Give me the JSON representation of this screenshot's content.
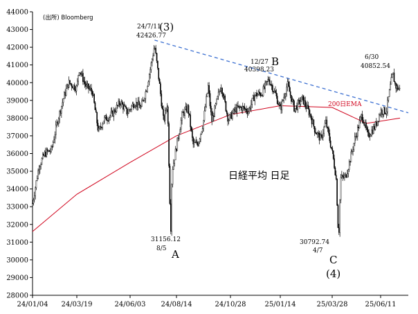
{
  "chart_data": {
    "type": "candlestick",
    "title": "日経平均 日足",
    "source": "(出所) Bloomberg",
    "ylim": [
      28000,
      44000
    ],
    "y_ticks": [
      "28000",
      "29000",
      "30000",
      "31000",
      "32000",
      "33000",
      "34000",
      "35000",
      "36000",
      "37000",
      "38000",
      "39000",
      "40000",
      "41000",
      "42000",
      "43000",
      "44000"
    ],
    "x_tick_labels": [
      "24/01/04",
      "24/03/19",
      "24/06/03",
      "24/08/14",
      "24/10/28",
      "25/01/14",
      "25/03/28",
      "25/06/11"
    ],
    "series": [
      {
        "name": "日経平均",
        "points": [
          [
            "24/01/04",
            33200
          ],
          [
            "24/01/15",
            35300
          ],
          [
            "24/01/25",
            36000
          ],
          [
            "24/02/05",
            36200
          ],
          [
            "24/02/15",
            37800
          ],
          [
            "24/02/26",
            39200
          ],
          [
            "24/03/05",
            40000
          ],
          [
            "24/03/19",
            39700
          ],
          [
            "24/03/22",
            40800
          ],
          [
            "24/04/01",
            39800
          ],
          [
            "24/04/10",
            39500
          ],
          [
            "24/04/19",
            37200
          ],
          [
            "24/04/26",
            37900
          ],
          [
            "24/05/08",
            38200
          ],
          [
            "24/05/20",
            38900
          ],
          [
            "24/05/30",
            38300
          ],
          [
            "24/06/10",
            38900
          ],
          [
            "24/06/20",
            38600
          ],
          [
            "24/06/28",
            39600
          ],
          [
            "24/07/05",
            40900
          ],
          [
            "24/07/11",
            42100
          ],
          [
            "24/07/18",
            40100
          ],
          [
            "24/07/25",
            37800
          ],
          [
            "24/07/31",
            38900
          ],
          [
            "24/08/02",
            35900
          ],
          [
            "24/08/05",
            31500
          ],
          [
            "24/08/07",
            35000
          ],
          [
            "24/08/14",
            36400
          ],
          [
            "24/08/22",
            38200
          ],
          [
            "24/08/30",
            38600
          ],
          [
            "24/09/06",
            36500
          ],
          [
            "24/09/13",
            36600
          ],
          [
            "24/09/20",
            37700
          ],
          [
            "24/09/27",
            39800
          ],
          [
            "24/10/02",
            37800
          ],
          [
            "24/10/15",
            39900
          ],
          [
            "24/10/25",
            37900
          ],
          [
            "24/11/05",
            38500
          ],
          [
            "24/11/15",
            38600
          ],
          [
            "24/11/25",
            38400
          ],
          [
            "24/12/05",
            39300
          ],
          [
            "24/12/16",
            39400
          ],
          [
            "24/12/27",
            40200
          ],
          [
            "25/01/06",
            39400
          ],
          [
            "25/01/14",
            38500
          ],
          [
            "25/01/24",
            39900
          ],
          [
            "25/02/03",
            38500
          ],
          [
            "25/02/14",
            39100
          ],
          [
            "25/02/25",
            38200
          ],
          [
            "25/03/04",
            37300
          ],
          [
            "25/03/12",
            36800
          ],
          [
            "25/03/19",
            37800
          ],
          [
            "25/03/28",
            36100
          ],
          [
            "25/04/03",
            34700
          ],
          [
            "25/04/07",
            31100
          ],
          [
            "25/04/10",
            34600
          ],
          [
            "25/04/18",
            34700
          ],
          [
            "25/04/25",
            35700
          ],
          [
            "25/05/02",
            36800
          ],
          [
            "25/05/13",
            38200
          ],
          [
            "25/05/22",
            37000
          ],
          [
            "25/06/02",
            37500
          ],
          [
            "25/06/11",
            38400
          ],
          [
            "25/06/20",
            38400
          ],
          [
            "25/06/27",
            40000
          ],
          [
            "25/06/30",
            40500
          ],
          [
            "25/07/04",
            39800
          ],
          [
            "25/07/11",
            39600
          ]
        ]
      },
      {
        "name": "200日EMA",
        "points": [
          [
            "24/01/04",
            31600
          ],
          [
            "24/03/19",
            33700
          ],
          [
            "24/06/03",
            35500
          ],
          [
            "24/08/14",
            37000
          ],
          [
            "24/10/28",
            38200
          ],
          [
            "25/01/14",
            38700
          ],
          [
            "25/03/28",
            38600
          ],
          [
            "25/05/20",
            37700
          ],
          [
            "25/07/11",
            38000
          ]
        ]
      }
    ],
    "annotations": [
      {
        "label": "24/7/11",
        "value": "42426.77",
        "marker": "(3)"
      },
      {
        "label": "12/27",
        "value": "40398.23",
        "marker": "B"
      },
      {
        "label": "6/30",
        "value": "40852.54"
      },
      {
        "label": "8/5",
        "value": "31156.12",
        "marker": "A"
      },
      {
        "label": "4/7",
        "value": "30792.74",
        "marker": "C",
        "sub_marker": "(4)"
      }
    ],
    "ema_label": "200日EMA",
    "colors": {
      "ema": "#d0021b",
      "trendline": "#3b6fd1",
      "candles": "#000000"
    },
    "grid": false,
    "legend": "none"
  }
}
